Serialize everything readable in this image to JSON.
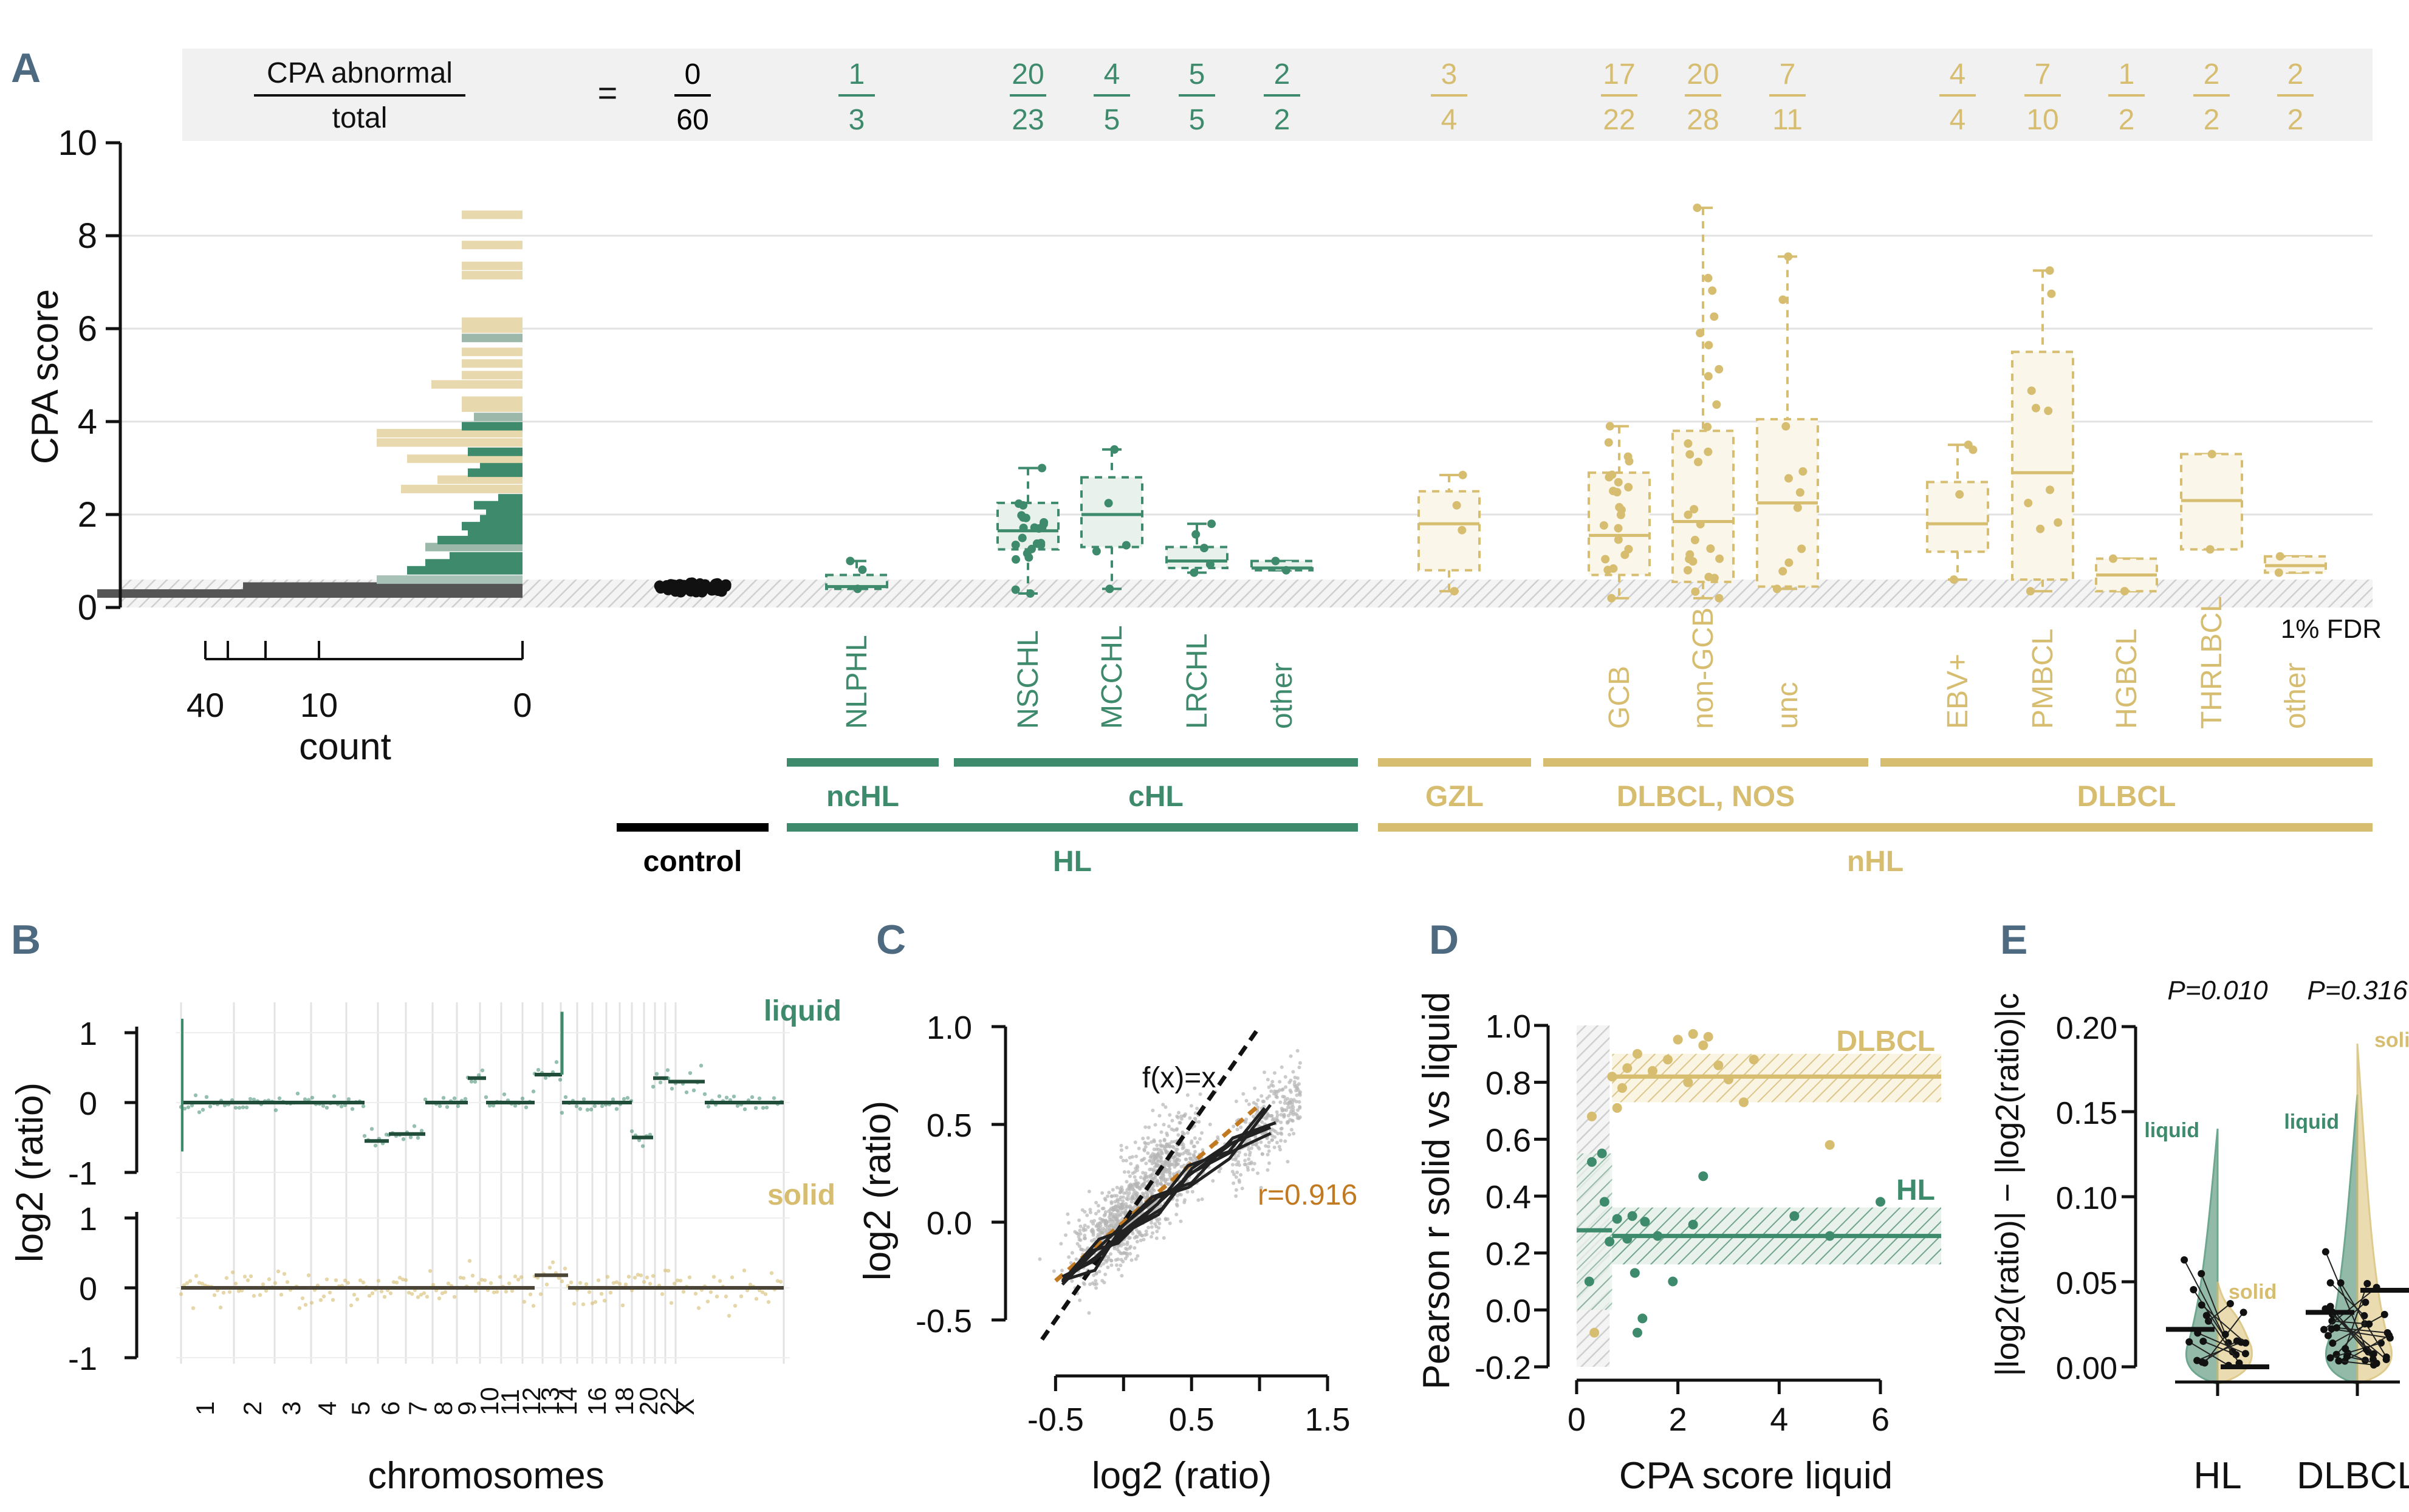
{
  "colors": {
    "hl": "#3e8a6c",
    "nhl": "#d6bd70",
    "control": "#000000",
    "grey": "#c8c8c8",
    "dark": "#333333",
    "orange": "#c27a22",
    "panel_label": "#4d6a80"
  },
  "panelA": {
    "label": "A",
    "ratio_header": {
      "numerator_label": "CPA abnormal",
      "denominator_label": "total",
      "equals": "="
    },
    "ylabel": "CPA score",
    "yticks": [
      "0",
      "2",
      "4",
      "6",
      "8",
      "10"
    ],
    "ylim": [
      0,
      10
    ],
    "hist_xlabel": "count",
    "hist_xticks": [
      "40",
      "10",
      "0"
    ],
    "fdr_label": "1% FDR",
    "fdr_threshold": 0.6,
    "groups": [
      {
        "name": "control",
        "color": "control",
        "num": "0",
        "den": "60",
        "median": 0.4,
        "q1": 0.35,
        "q3": 0.45,
        "wlo": 0.3,
        "whi": 0.55
      },
      {
        "name": "NLPHL",
        "color": "hl",
        "num": "1",
        "den": "3",
        "median": 0.45,
        "q1": 0.4,
        "q3": 0.7,
        "wlo": 0.4,
        "whi": 1.0
      },
      {
        "name": "NSCHL",
        "color": "hl",
        "num": "20",
        "den": "23",
        "median": 1.65,
        "q1": 1.25,
        "q3": 2.25,
        "wlo": 0.3,
        "whi": 3.0
      },
      {
        "name": "MCCHL",
        "color": "hl",
        "num": "4",
        "den": "5",
        "median": 2.0,
        "q1": 1.3,
        "q3": 2.8,
        "wlo": 0.4,
        "whi": 3.4
      },
      {
        "name": "LRCHL",
        "color": "hl",
        "num": "5",
        "den": "5",
        "median": 1.0,
        "q1": 0.85,
        "q3": 1.3,
        "wlo": 0.75,
        "whi": 1.8
      },
      {
        "name": "other",
        "color": "hl",
        "num": "2",
        "den": "2",
        "median": 0.85,
        "q1": 0.8,
        "q3": 1.0,
        "wlo": 0.8,
        "whi": 1.0
      },
      {
        "name": "GZL",
        "color": "nhl",
        "num": "3",
        "den": "4",
        "median": 1.8,
        "q1": 0.8,
        "q3": 2.5,
        "wlo": 0.35,
        "whi": 2.85
      },
      {
        "name": "GCB",
        "color": "nhl",
        "num": "17",
        "den": "22",
        "median": 1.55,
        "q1": 0.7,
        "q3": 2.9,
        "wlo": 0.2,
        "whi": 3.9
      },
      {
        "name": "non-GCB",
        "color": "nhl",
        "num": "20",
        "den": "28",
        "median": 1.85,
        "q1": 0.55,
        "q3": 3.8,
        "wlo": 0.2,
        "whi": 8.6
      },
      {
        "name": "unc",
        "color": "nhl",
        "num": "7",
        "den": "11",
        "median": 2.25,
        "q1": 0.45,
        "q3": 4.05,
        "wlo": 0.4,
        "whi": 7.55
      },
      {
        "name": "EBV+",
        "color": "nhl",
        "num": "4",
        "den": "4",
        "median": 1.8,
        "q1": 1.2,
        "q3": 2.7,
        "wlo": 0.6,
        "whi": 3.5
      },
      {
        "name": "PMBCL",
        "color": "nhl",
        "num": "7",
        "den": "10",
        "median": 2.9,
        "q1": 0.6,
        "q3": 5.5,
        "wlo": 0.35,
        "whi": 7.25
      },
      {
        "name": "HGBCL",
        "color": "nhl",
        "num": "1",
        "den": "2",
        "median": 0.7,
        "q1": 0.35,
        "q3": 1.05,
        "wlo": 0.35,
        "whi": 1.05
      },
      {
        "name": "THRLBCL",
        "color": "nhl",
        "num": "2",
        "den": "2",
        "median": 2.3,
        "q1": 1.25,
        "q3": 3.3,
        "wlo": 1.25,
        "whi": 3.3
      },
      {
        "name": "other",
        "color": "nhl",
        "num": "2",
        "den": "2",
        "median": 0.9,
        "q1": 0.75,
        "q3": 1.1,
        "wlo": 0.75,
        "whi": 1.1
      }
    ],
    "brackets": [
      {
        "label": "ncHL",
        "color": "hl"
      },
      {
        "label": "cHL",
        "color": "hl"
      },
      {
        "label": "GZL",
        "color": "nhl"
      },
      {
        "label": "DLBCL, NOS",
        "color": "nhl"
      },
      {
        "label": "DLBCL",
        "color": "nhl"
      },
      {
        "label": "control",
        "color": "control"
      },
      {
        "label": "HL",
        "color": "hl"
      },
      {
        "label": "nHL",
        "color": "nhl"
      }
    ]
  },
  "panelB": {
    "label": "B",
    "ylabel": "log2 (ratio)",
    "xlabel": "chromosomes",
    "liquid_label": "liquid",
    "solid_label": "solid",
    "yticks_top": [
      "1",
      "0",
      "-1"
    ],
    "yticks_bottom": [
      "1",
      "0",
      "-1"
    ],
    "chrom_labels": [
      "1",
      "2",
      "3",
      "4",
      "5",
      "6",
      "7",
      "8",
      "9",
      "10",
      "11",
      "12",
      "13",
      "14",
      "16",
      "18",
      "20",
      "22",
      "X"
    ]
  },
  "panelC": {
    "label": "C",
    "xlabel": "log2 (ratio)",
    "ylabel": "log2 (ratio)",
    "xticks": [
      "-0.5",
      "0.5",
      "1.5"
    ],
    "yticks": [
      "1.0",
      "0.5",
      "0.0",
      "-0.5"
    ],
    "identity_label": "f(x)=x",
    "r_label": "r=0.916",
    "xlim": [
      -0.6,
      1.5
    ],
    "ylim": [
      -0.6,
      1.0
    ]
  },
  "panelD": {
    "label": "D",
    "ylabel": "Pearson r solid vs liquid",
    "xlabel": "CPA score liquid",
    "yticks": [
      "1.0",
      "0.8",
      "0.6",
      "0.4",
      "0.2",
      "0.0",
      "-0.2"
    ],
    "xticks": [
      "0",
      "2",
      "4",
      "6"
    ],
    "ylim": [
      -0.2,
      1.0
    ],
    "xlim": [
      0,
      7.2
    ],
    "dlbcl_label": "DLBCL",
    "hl_label": "HL",
    "dlbcl_mean": 0.82,
    "hl_mean": 0.26,
    "hl_points": [
      [
        0.3,
        0.52
      ],
      [
        0.5,
        0.55
      ],
      [
        0.65,
        0.24
      ],
      [
        0.8,
        0.32
      ],
      [
        1.0,
        0.25
      ],
      [
        1.15,
        0.13
      ],
      [
        1.3,
        -0.03
      ],
      [
        1.35,
        0.31
      ],
      [
        1.1,
        0.33
      ],
      [
        1.6,
        0.26
      ],
      [
        1.9,
        0.1
      ],
      [
        2.3,
        0.3
      ],
      [
        2.5,
        0.47
      ],
      [
        4.3,
        0.33
      ],
      [
        5.0,
        0.26
      ],
      [
        6.0,
        0.38
      ],
      [
        0.55,
        0.38
      ],
      [
        0.25,
        0.1
      ],
      [
        1.2,
        -0.08
      ]
    ],
    "dlbcl_points": [
      [
        0.3,
        0.68
      ],
      [
        0.7,
        0.82
      ],
      [
        0.9,
        0.78
      ],
      [
        1.0,
        0.85
      ],
      [
        1.2,
        0.9
      ],
      [
        1.8,
        0.88
      ],
      [
        2.0,
        0.95
      ],
      [
        2.3,
        0.97
      ],
      [
        2.5,
        0.93
      ],
      [
        2.6,
        0.96
      ],
      [
        2.8,
        0.86
      ],
      [
        3.0,
        0.81
      ],
      [
        3.3,
        0.73
      ],
      [
        3.5,
        0.88
      ],
      [
        2.2,
        0.8
      ],
      [
        1.5,
        0.84
      ],
      [
        0.35,
        -0.08
      ],
      [
        0.8,
        0.71
      ],
      [
        5.0,
        0.58
      ]
    ]
  },
  "panelE": {
    "label": "E",
    "ylabel": "|log2(ratio)| − |log2(ratio)|c",
    "yticks": [
      "0.20",
      "0.15",
      "0.10",
      "0.05",
      "0.00"
    ],
    "ylim": [
      0,
      0.2
    ],
    "groups": [
      {
        "name": "HL",
        "pvalue": "P=0.010",
        "liquid_label": "liquid",
        "solid_label": "solid",
        "liquid_mean": 0.022,
        "solid_mean": -0.002
      },
      {
        "name": "DLBCL",
        "pvalue": "P=0.316",
        "liquid_label": "liquid",
        "solid_label": "solid",
        "liquid_mean": 0.032,
        "solid_mean": 0.045
      }
    ]
  }
}
